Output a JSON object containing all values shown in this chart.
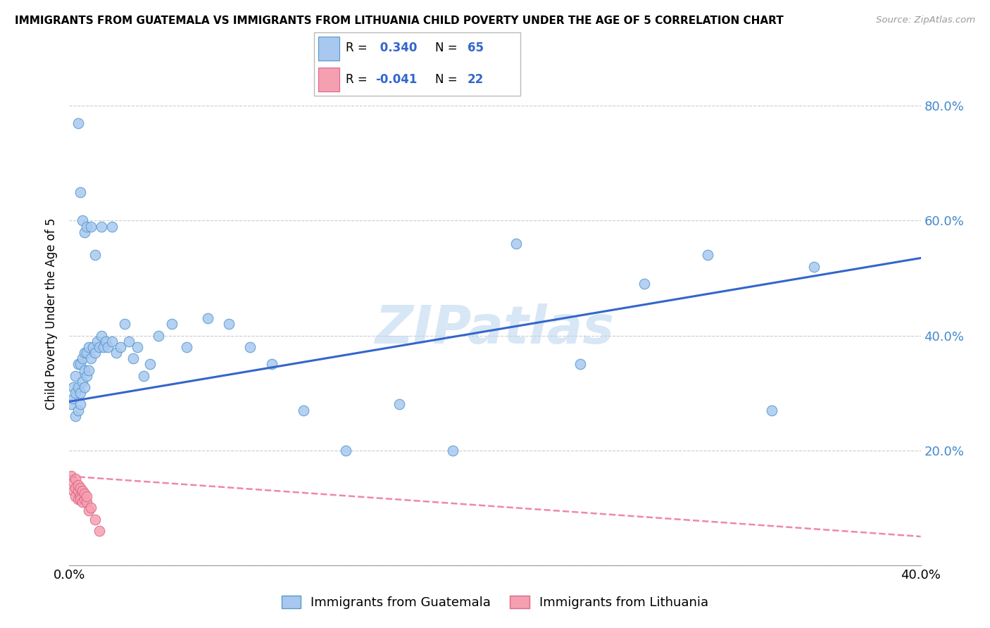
{
  "title": "IMMIGRANTS FROM GUATEMALA VS IMMIGRANTS FROM LITHUANIA CHILD POVERTY UNDER THE AGE OF 5 CORRELATION CHART",
  "source": "Source: ZipAtlas.com",
  "ylabel": "Child Poverty Under the Age of 5",
  "xlim": [
    0.0,
    0.4
  ],
  "ylim": [
    0.0,
    0.875
  ],
  "yticks": [
    0.0,
    0.2,
    0.4,
    0.6,
    0.8
  ],
  "ytick_labels": [
    "",
    "20.0%",
    "40.0%",
    "60.0%",
    "80.0%"
  ],
  "guatemala_color": "#a8c8f0",
  "guatemala_edge": "#5599cc",
  "lithuania_color": "#f5a0b0",
  "lithuania_edge": "#dd6688",
  "line_guatemala": "#3366cc",
  "line_lithuania": "#ee88aa",
  "watermark": "ZIPatlas",
  "legend_label1": "Immigrants from Guatemala",
  "legend_label2": "Immigrants from Lithuania",
  "guatemala_x": [
    0.001,
    0.002,
    0.002,
    0.003,
    0.003,
    0.003,
    0.004,
    0.004,
    0.004,
    0.005,
    0.005,
    0.005,
    0.006,
    0.006,
    0.007,
    0.007,
    0.007,
    0.008,
    0.008,
    0.009,
    0.009,
    0.01,
    0.011,
    0.012,
    0.013,
    0.014,
    0.015,
    0.016,
    0.017,
    0.018,
    0.02,
    0.022,
    0.024,
    0.026,
    0.028,
    0.03,
    0.032,
    0.035,
    0.038,
    0.042,
    0.048,
    0.055,
    0.065,
    0.075,
    0.085,
    0.095,
    0.11,
    0.13,
    0.155,
    0.18,
    0.21,
    0.24,
    0.27,
    0.3,
    0.33,
    0.35,
    0.004,
    0.005,
    0.006,
    0.007,
    0.008,
    0.01,
    0.012,
    0.015,
    0.02
  ],
  "guatemala_y": [
    0.28,
    0.29,
    0.31,
    0.26,
    0.3,
    0.33,
    0.27,
    0.31,
    0.35,
    0.28,
    0.3,
    0.35,
    0.32,
    0.36,
    0.31,
    0.34,
    0.37,
    0.33,
    0.37,
    0.34,
    0.38,
    0.36,
    0.38,
    0.37,
    0.39,
    0.38,
    0.4,
    0.38,
    0.39,
    0.38,
    0.39,
    0.37,
    0.38,
    0.42,
    0.39,
    0.36,
    0.38,
    0.33,
    0.35,
    0.4,
    0.42,
    0.38,
    0.43,
    0.42,
    0.38,
    0.35,
    0.27,
    0.2,
    0.28,
    0.2,
    0.56,
    0.35,
    0.49,
    0.54,
    0.27,
    0.52,
    0.77,
    0.65,
    0.6,
    0.58,
    0.59,
    0.59,
    0.54,
    0.59,
    0.59
  ],
  "lithuania_x": [
    0.001,
    0.002,
    0.002,
    0.003,
    0.003,
    0.003,
    0.004,
    0.004,
    0.004,
    0.005,
    0.005,
    0.005,
    0.006,
    0.006,
    0.007,
    0.007,
    0.008,
    0.008,
    0.009,
    0.01,
    0.012,
    0.014
  ],
  "lithuania_y": [
    0.155,
    0.13,
    0.145,
    0.12,
    0.135,
    0.15,
    0.115,
    0.13,
    0.14,
    0.12,
    0.135,
    0.115,
    0.11,
    0.13,
    0.115,
    0.125,
    0.11,
    0.12,
    0.095,
    0.1,
    0.08,
    0.06
  ],
  "guate_line_x0": 0.0,
  "guate_line_x1": 0.4,
  "guate_line_y0": 0.285,
  "guate_line_y1": 0.535,
  "lith_line_x0": 0.0,
  "lith_line_x1": 0.4,
  "lith_line_y0": 0.155,
  "lith_line_y1": 0.05
}
